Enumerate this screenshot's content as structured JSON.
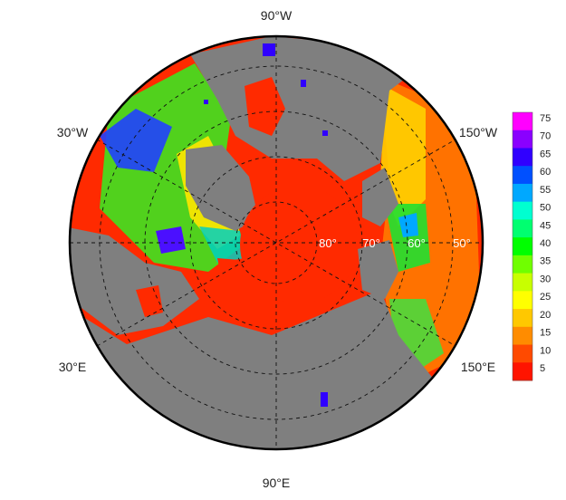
{
  "map": {
    "projection": "north-polar-stereographic",
    "land_color": "#7f7f7f",
    "ocean_low_color": "#ff2a00",
    "graticule_style": "dashed",
    "longitude_labels": [
      {
        "id": "90w",
        "text": "90°W"
      },
      {
        "id": "150w",
        "text": "150°W"
      },
      {
        "id": "30w",
        "text": "30°W"
      },
      {
        "id": "30e",
        "text": "30°E"
      },
      {
        "id": "150e",
        "text": "150°E"
      },
      {
        "id": "90e",
        "text": "90°E"
      }
    ],
    "latitude_labels": [
      {
        "id": "80",
        "text": "80°"
      },
      {
        "id": "70",
        "text": "70°"
      },
      {
        "id": "60",
        "text": "60°"
      },
      {
        "id": "50",
        "text": "50°"
      }
    ]
  },
  "colorbar": {
    "ticks": [
      "75",
      "70",
      "65",
      "60",
      "55",
      "50",
      "45",
      "40",
      "35",
      "30",
      "25",
      "20",
      "15",
      "10",
      "5"
    ],
    "colors": [
      "#ff00ff",
      "#8a00ff",
      "#3000ff",
      "#0050ff",
      "#00a8ff",
      "#00ffd0",
      "#00ff70",
      "#00ff00",
      "#70ff00",
      "#c8ff00",
      "#ffff00",
      "#ffc800",
      "#ff8c00",
      "#ff4a00",
      "#ff1400"
    ]
  }
}
